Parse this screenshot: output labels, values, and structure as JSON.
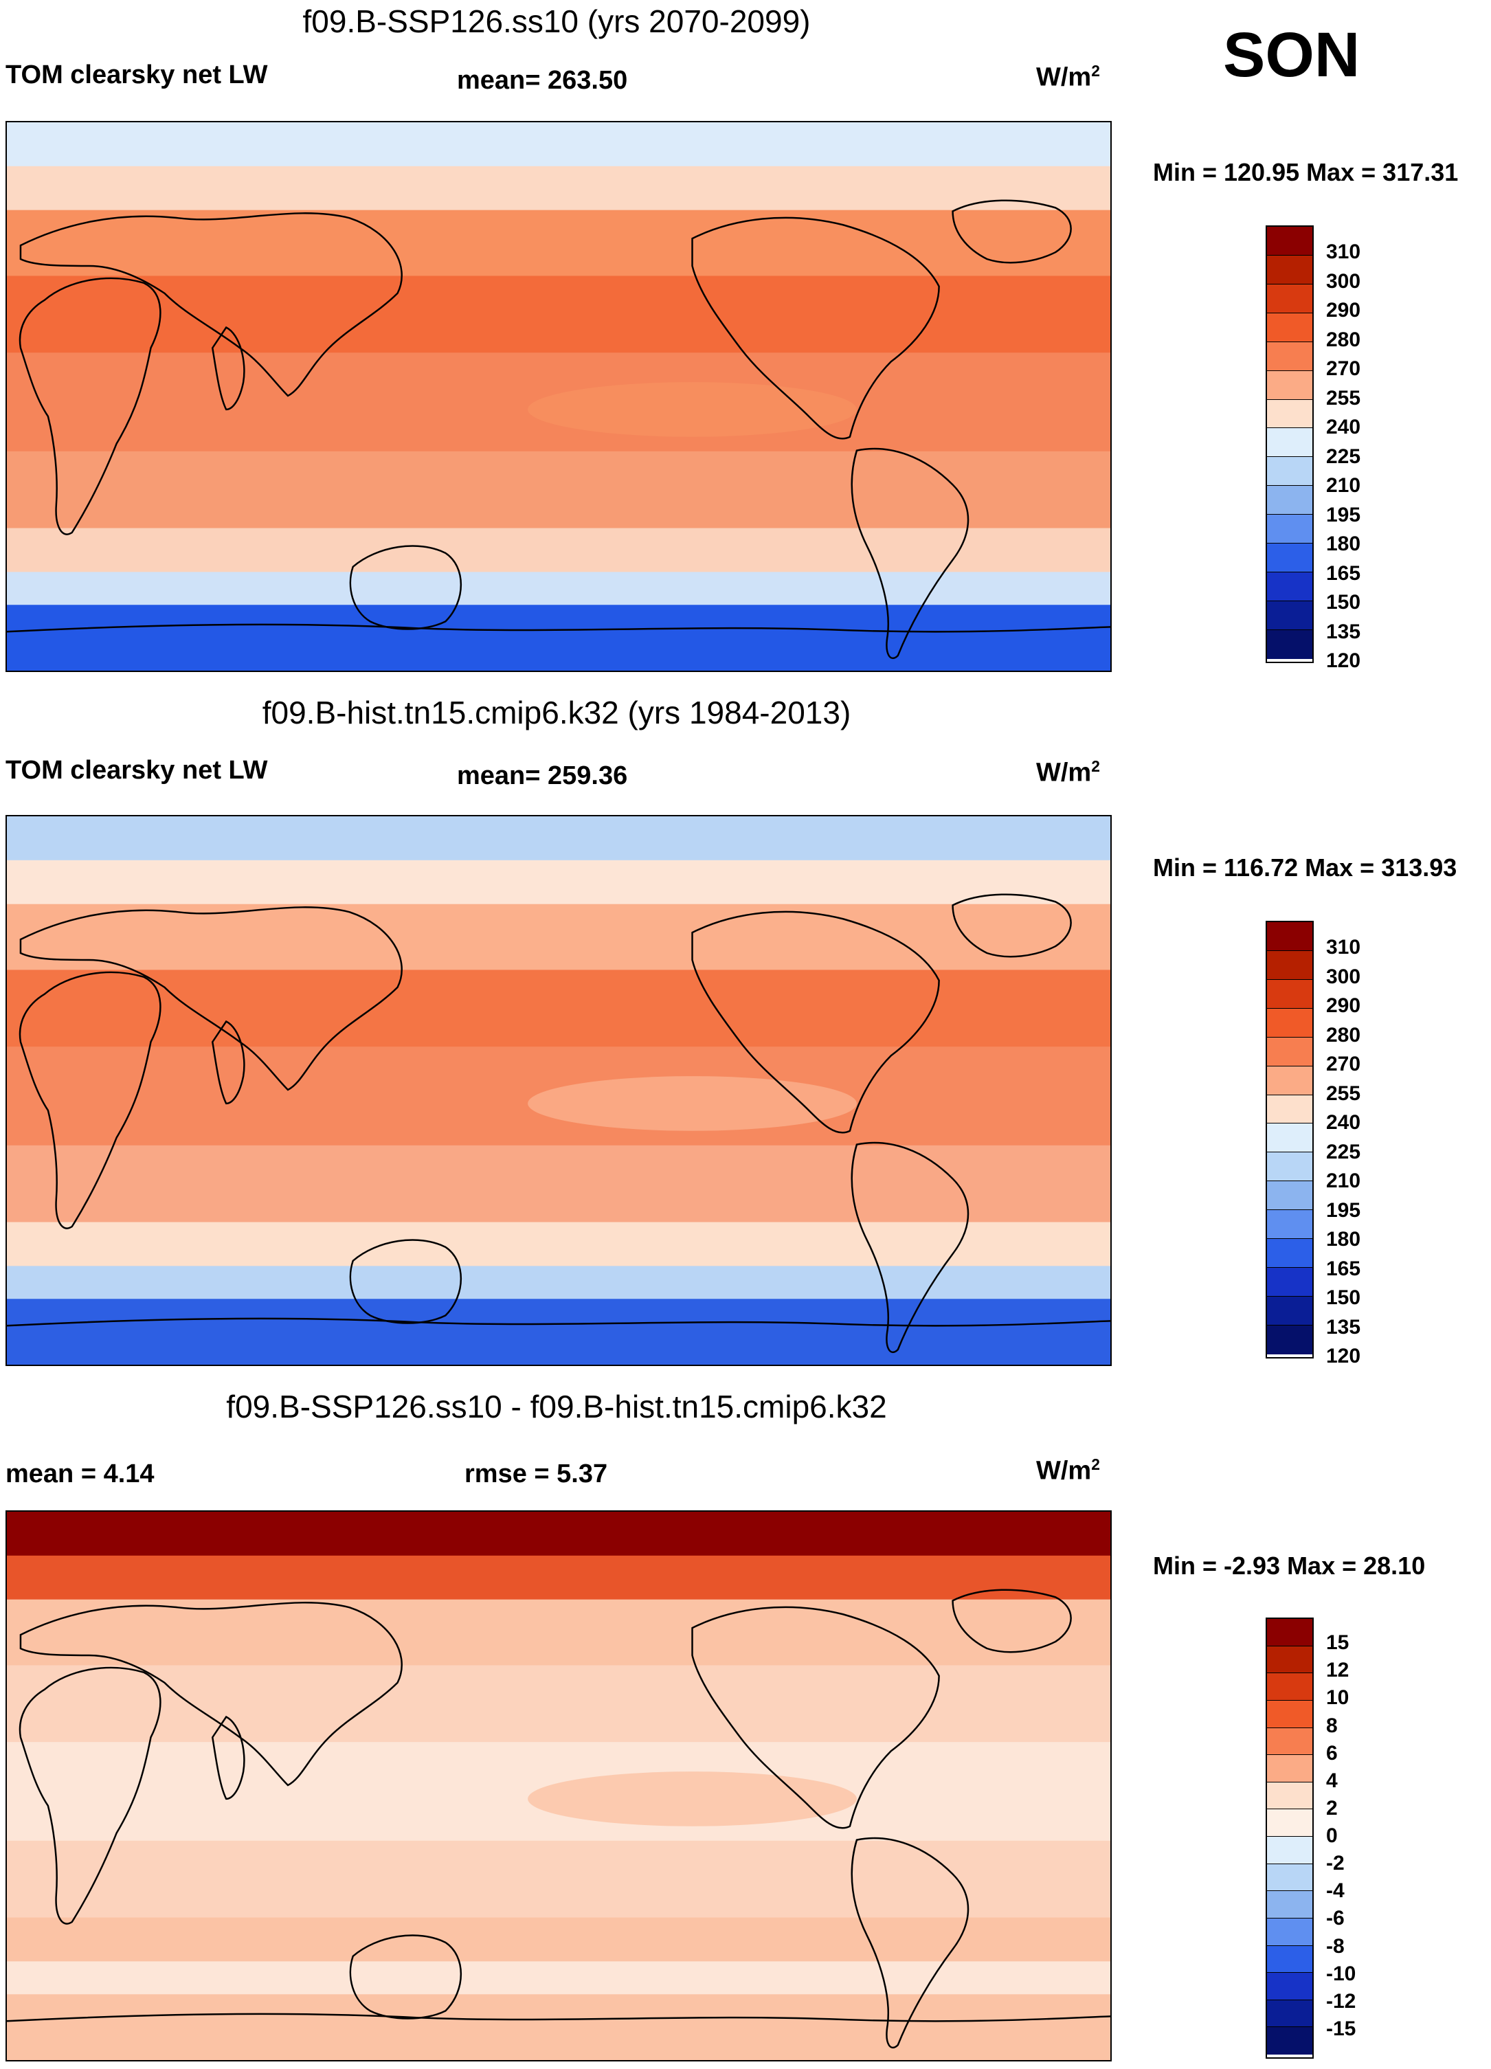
{
  "season": "SON",
  "panels": [
    {
      "title": "f09.B-SSP126.ss10 (yrs 2070-2099)",
      "left_label": "TOM clearsky net LW",
      "center_label": "mean= 263.50",
      "units": "W/m",
      "units_sup": "2",
      "minmax": "Min = 120.95 Max = 317.31",
      "colorbar": {
        "colors": [
          "#8b0000",
          "#b52000",
          "#d83a10",
          "#f05a28",
          "#f77e50",
          "#fbab86",
          "#fde0cc",
          "#deeefb",
          "#b8d6f6",
          "#8cb4ef",
          "#5f8ff0",
          "#2c5fe8",
          "#1733c7",
          "#0a1e96",
          "#05106a"
        ],
        "ticks": [
          "310",
          "300",
          "290",
          "280",
          "270",
          "255",
          "240",
          "225",
          "210",
          "195",
          "180",
          "165",
          "150",
          "135",
          "120"
        ]
      },
      "map_zones": [
        "#dcebfa",
        "#fcd9c4",
        "#f8905f",
        "#f36b3a",
        "#f5855a",
        "#f79c74",
        "#fbd2bb",
        "#cfe2f8",
        "#2358e6"
      ]
    },
    {
      "title": "f09.B-hist.tn15.cmip6.k32 (yrs 1984-2013)",
      "left_label": "TOM clearsky net LW",
      "center_label": "mean= 259.36",
      "units": "W/m",
      "units_sup": "2",
      "minmax": "Min = 116.72 Max = 313.93",
      "colorbar": {
        "colors": [
          "#8b0000",
          "#b52000",
          "#d83a10",
          "#f05a28",
          "#f77e50",
          "#fbab86",
          "#fde0cc",
          "#deeefb",
          "#b8d6f6",
          "#8cb4ef",
          "#5f8ff0",
          "#2c5fe8",
          "#1733c7",
          "#0a1e96",
          "#05106a"
        ],
        "ticks": [
          "310",
          "300",
          "290",
          "280",
          "270",
          "255",
          "240",
          "225",
          "210",
          "195",
          "180",
          "165",
          "150",
          "135",
          "120"
        ]
      },
      "map_zones": [
        "#b9d5f5",
        "#fde5d6",
        "#fbb08c",
        "#f47545",
        "#f6895f",
        "#f9a886",
        "#fde0cc",
        "#b9d5f5",
        "#2d5fe3"
      ]
    },
    {
      "title": "f09.B-SSP126.ss10 - f09.B-hist.tn15.cmip6.k32",
      "left_label": "mean =   4.14",
      "center_label": "rmse =   5.37",
      "units": "W/m",
      "units_sup": "2",
      "minmax": "Min =  -2.93 Max =  28.10",
      "colorbar": {
        "colors": [
          "#8b0000",
          "#b52000",
          "#d83a10",
          "#f05a28",
          "#f77e50",
          "#fbab86",
          "#fde0cc",
          "#fdf0e6",
          "#deeefb",
          "#b8d6f6",
          "#8cb4ef",
          "#5f8ff0",
          "#2c5fe8",
          "#1733c7",
          "#0a1e96",
          "#05106a"
        ],
        "ticks": [
          "15",
          "12",
          "10",
          "8",
          "6",
          "4",
          "2",
          "0",
          "-2",
          "-4",
          "-6",
          "-8",
          "-10",
          "-12",
          "-15"
        ]
      },
      "map_zones": [
        "#8b0000",
        "#e8552a",
        "#fbc3a5",
        "#fcd3bd",
        "#fde6d8",
        "#fcd3bd",
        "#fbc3a5",
        "#fde6d8",
        "#fbc3a5"
      ]
    }
  ]
}
